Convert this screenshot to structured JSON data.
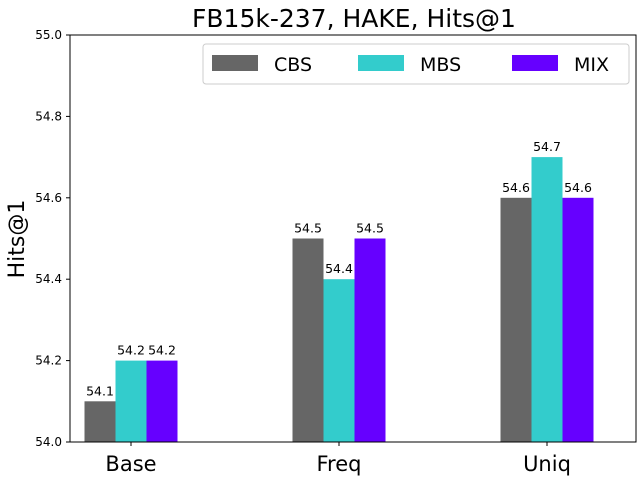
{
  "chart_data": {
    "type": "bar",
    "title": "FB15k-237, HAKE, Hits@1",
    "xlabel": "",
    "ylabel": "Hits@1",
    "categories": [
      "Base",
      "Freq",
      "Uniq"
    ],
    "ylim": [
      54.0,
      55.0
    ],
    "yticks": [
      "54.0",
      "54.2",
      "54.4",
      "54.6",
      "54.8",
      "55.0"
    ],
    "legend_position": "top-right",
    "grid": false,
    "series": [
      {
        "name": "CBS",
        "color": "#666666",
        "values": [
          54.1,
          54.5,
          54.6
        ],
        "labels": [
          "54.1",
          "54.5",
          "54.6"
        ]
      },
      {
        "name": "MBS",
        "color": "#33cccc",
        "values": [
          54.2,
          54.4,
          54.7
        ],
        "labels": [
          "54.2",
          "54.4",
          "54.7"
        ]
      },
      {
        "name": "MIX",
        "color": "#6600ff",
        "values": [
          54.2,
          54.5,
          54.6
        ],
        "labels": [
          "54.2",
          "54.5",
          "54.6"
        ]
      }
    ]
  }
}
